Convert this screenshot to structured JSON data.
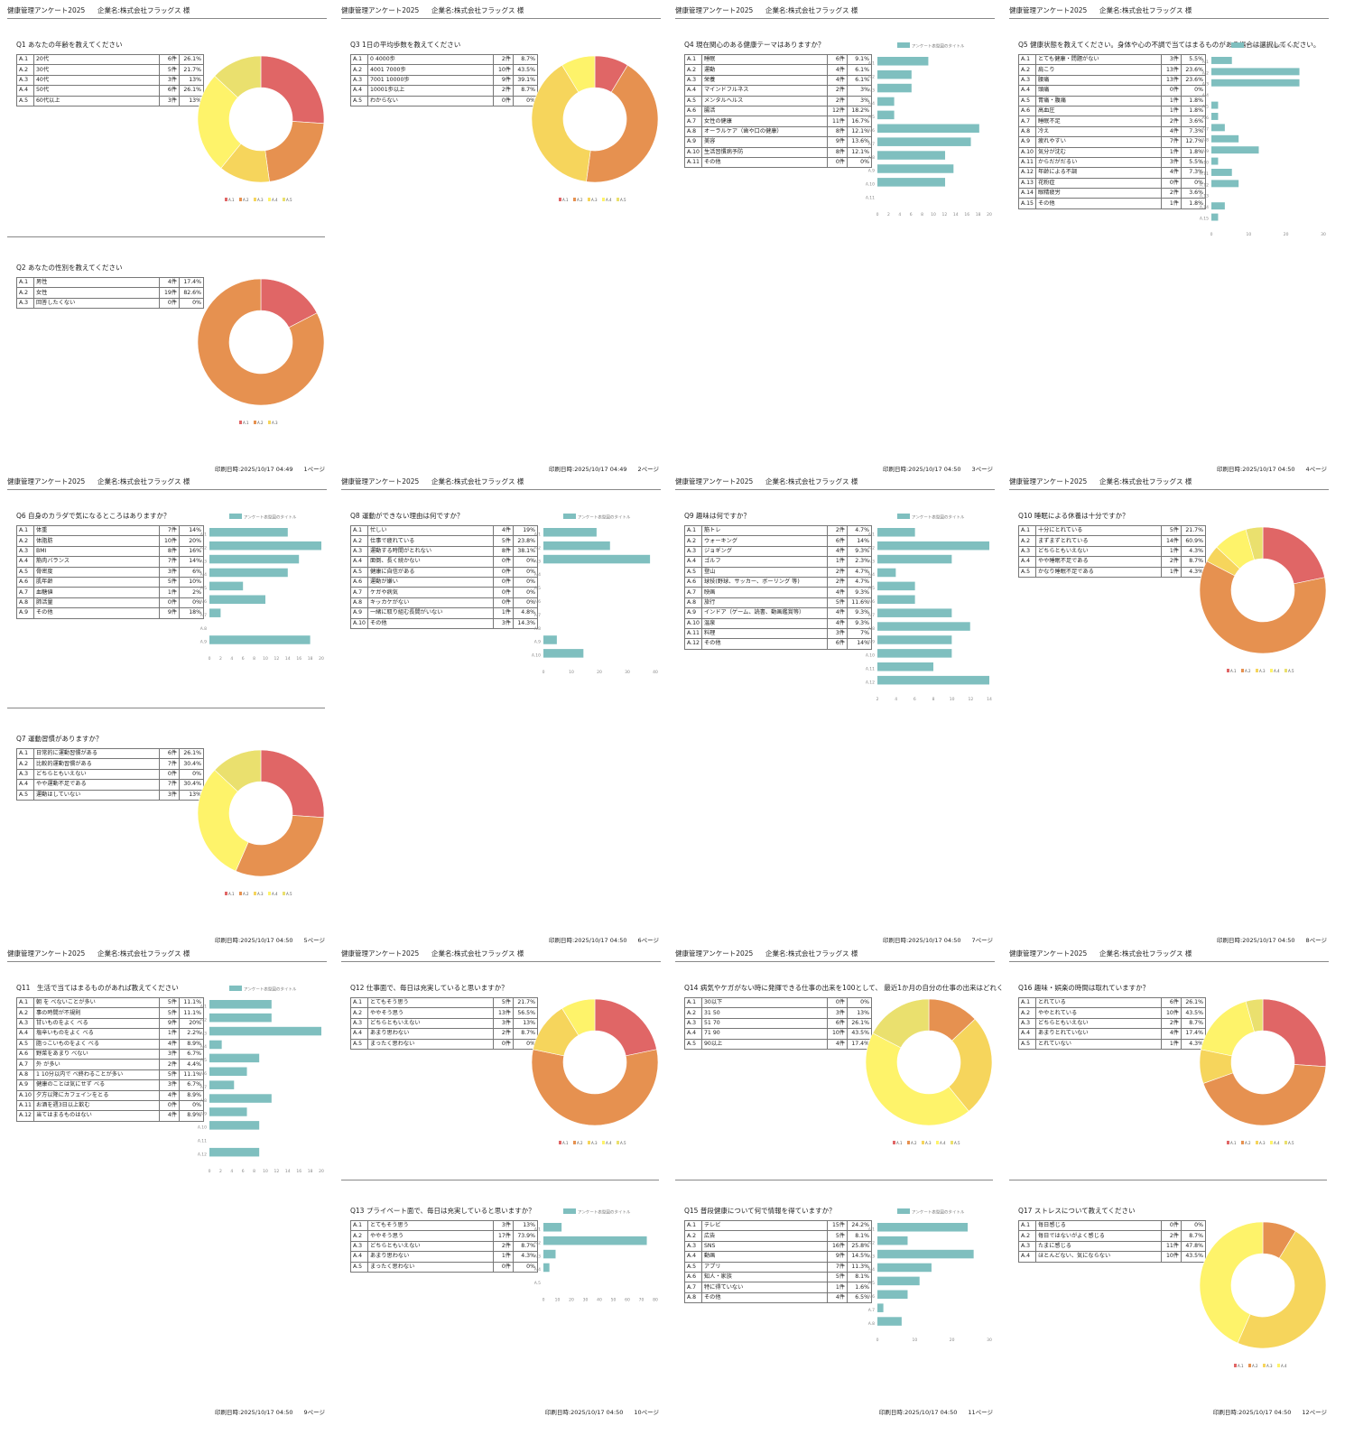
{
  "header": {
    "title": "健康管理アンケート2025",
    "company": "企業名:株式会社フラッグス 様"
  },
  "print_prefix": "印刷日時:",
  "bar_legend_label": "アンケート表型図のタイトル",
  "colors": {
    "donut": [
      "#e06666",
      "#e69150",
      "#f6d55c",
      "#fef36a",
      "#eae06e"
    ],
    "bar": "#7fbfbf"
  },
  "pages": [
    {
      "date": "2025/10/17 04:49",
      "page": "1ページ"
    },
    {
      "date": "2025/10/17 04:49",
      "page": "2ページ"
    },
    {
      "date": "2025/10/17 04:50",
      "page": "3ページ"
    },
    {
      "date": "2025/10/17 04:50",
      "page": "4ページ"
    },
    {
      "date": "2025/10/17 04:50",
      "page": "5ページ"
    },
    {
      "date": "2025/10/17 04:50",
      "page": "6ページ"
    },
    {
      "date": "2025/10/17 04:50",
      "page": "7ページ"
    },
    {
      "date": "2025/10/17 04:50",
      "page": "8ページ"
    },
    {
      "date": "2025/10/17 04:50",
      "page": "9ページ"
    },
    {
      "date": "2025/10/17 04:50",
      "page": "10ページ"
    },
    {
      "date": "2025/10/17 04:50",
      "page": "11ページ"
    },
    {
      "date": "2025/10/17 04:50",
      "page": "12ページ"
    }
  ],
  "questions": [
    {
      "page": 0,
      "slot": 0,
      "title": "Q1 あなたの年齢を教えてください",
      "chart": "donut",
      "answers": [
        [
          "A.1",
          "20代",
          "6件",
          "26.1%"
        ],
        [
          "A.2",
          "30代",
          "5件",
          "21.7%"
        ],
        [
          "A.3",
          "40代",
          "3件",
          "13%"
        ],
        [
          "A.4",
          "50代",
          "6件",
          "26.1%"
        ],
        [
          "A.5",
          "60代以上",
          "3件",
          "13%"
        ]
      ]
    },
    {
      "page": 0,
      "slot": 1,
      "title": "Q2 あなたの性別を教えてください",
      "chart": "donut",
      "answers": [
        [
          "A.1",
          "男性",
          "4件",
          "17.4%"
        ],
        [
          "A.2",
          "女性",
          "19件",
          "82.6%"
        ],
        [
          "A.3",
          "回答したくない",
          "0件",
          "0%"
        ]
      ]
    },
    {
      "page": 1,
      "slot": 0,
      "title": "Q3 1日の平均歩数を教えてください",
      "chart": "donut",
      "answers": [
        [
          "A.1",
          "0 4000歩",
          "2件",
          "8.7%"
        ],
        [
          "A.2",
          "4001 7000歩",
          "10件",
          "43.5%"
        ],
        [
          "A.3",
          "7001 10000歩",
          "9件",
          "39.1%"
        ],
        [
          "A.4",
          "10001歩以上",
          "2件",
          "8.7%"
        ],
        [
          "A.5",
          "わからない",
          "0件",
          "0%"
        ]
      ]
    },
    {
      "page": 2,
      "slot": 0,
      "title": "Q4 現在関心のある健康テーマはありますか？",
      "chart": "bar",
      "axis": [
        "0",
        "2",
        "4",
        "6",
        "8",
        "10",
        "12",
        "14",
        "16",
        "18",
        "20"
      ],
      "axis_max": 20,
      "answers": [
        [
          "A.1",
          "睡眠",
          "6件",
          "9.1%"
        ],
        [
          "A.2",
          "運動",
          "4件",
          "6.1%"
        ],
        [
          "A.3",
          "栄養",
          "4件",
          "6.1%"
        ],
        [
          "A.4",
          "マインドフルネス",
          "2件",
          "3%"
        ],
        [
          "A.5",
          "メンタルヘルス",
          "2件",
          "3%"
        ],
        [
          "A.6",
          "腸活",
          "12件",
          "18.2%"
        ],
        [
          "A.7",
          "女性の健康",
          "11件",
          "16.7%"
        ],
        [
          "A.8",
          "オーラルケア（歯や口の健康）",
          "8件",
          "12.1%"
        ],
        [
          "A.9",
          "美容",
          "9件",
          "13.6%"
        ],
        [
          "A.10",
          "生活習慣病予防",
          "8件",
          "12.1%"
        ],
        [
          "A.11",
          "その他",
          "0件",
          "0%"
        ]
      ]
    },
    {
      "page": 3,
      "slot": 0,
      "title": "Q5 健康状態を教えてください。身体や心の不調で当てはまるものがある場合は選択してください。",
      "chart": "bar",
      "axis": [
        "0",
        "10",
        "20",
        "30"
      ],
      "axis_max": 30,
      "answers": [
        [
          "A.1",
          "とても健康・問題がない",
          "3件",
          "5.5%"
        ],
        [
          "A.2",
          "肩こり",
          "13件",
          "23.6%"
        ],
        [
          "A.3",
          "腰痛",
          "13件",
          "23.6%"
        ],
        [
          "A.4",
          "頭痛",
          "0件",
          "0%"
        ],
        [
          "A.5",
          "胃痛・腹痛",
          "1件",
          "1.8%"
        ],
        [
          "A.6",
          "高血圧",
          "1件",
          "1.8%"
        ],
        [
          "A.7",
          "睡眠不足",
          "2件",
          "3.6%"
        ],
        [
          "A.8",
          "冷え",
          "4件",
          "7.3%"
        ],
        [
          "A.9",
          "疲れやすい",
          "7件",
          "12.7%"
        ],
        [
          "A.10",
          "気分が沈む",
          "1件",
          "1.8%"
        ],
        [
          "A.11",
          "からだがだるい",
          "3件",
          "5.5%"
        ],
        [
          "A.12",
          "年齢による不調",
          "4件",
          "7.3%"
        ],
        [
          "A.13",
          "花粉症",
          "0件",
          "0%"
        ],
        [
          "A.14",
          "眼精疲労",
          "2件",
          "3.6%"
        ],
        [
          "A.15",
          "その他",
          "1件",
          "1.8%"
        ]
      ]
    },
    {
      "page": 4,
      "slot": 0,
      "title": "Q6 自身のカラダで気になるところはありますか？",
      "chart": "bar",
      "axis": [
        "0",
        "2",
        "4",
        "6",
        "8",
        "10",
        "12",
        "14",
        "16",
        "18",
        "20"
      ],
      "axis_max": 20,
      "answers": [
        [
          "A.1",
          "体重",
          "7件",
          "14%"
        ],
        [
          "A.2",
          "体脂肪",
          "10件",
          "20%"
        ],
        [
          "A.3",
          "BMI",
          "8件",
          "16%"
        ],
        [
          "A.4",
          "筋肉バランス",
          "7件",
          "14%"
        ],
        [
          "A.5",
          "骨密度",
          "3件",
          "6%"
        ],
        [
          "A.6",
          "肌年齢",
          "5件",
          "10%"
        ],
        [
          "A.7",
          "血糖値",
          "1件",
          "2%"
        ],
        [
          "A.8",
          "肺活量",
          "0件",
          "0%"
        ],
        [
          "A.9",
          "その他",
          "9件",
          "18%"
        ]
      ]
    },
    {
      "page": 4,
      "slot": 1,
      "title": "Q7 運動習慣がありますか？",
      "chart": "donut",
      "answers": [
        [
          "A.1",
          "日常的に運動習慣がある",
          "6件",
          "26.1%"
        ],
        [
          "A.2",
          "比較的運動習慣がある",
          "7件",
          "30.4%"
        ],
        [
          "A.3",
          "どちらともいえない",
          "0件",
          "0%"
        ],
        [
          "A.4",
          "やや運動不足である",
          "7件",
          "30.4%"
        ],
        [
          "A.5",
          "運動はしていない",
          "3件",
          "13%"
        ]
      ]
    },
    {
      "page": 5,
      "slot": 0,
      "title": "Q8 運動ができない理由は何ですか？",
      "chart": "bar",
      "axis": [
        "0",
        "10",
        "20",
        "30",
        "40"
      ],
      "axis_max": 40,
      "answers": [
        [
          "A.1",
          "忙しい",
          "4件",
          "19%"
        ],
        [
          "A.2",
          "仕事で疲れている",
          "5件",
          "23.8%"
        ],
        [
          "A.3",
          "運動する時間がとれない",
          "8件",
          "38.1%"
        ],
        [
          "A.4",
          "面倒、長く続かない",
          "0件",
          "0%"
        ],
        [
          "A.5",
          "健康に自信がある",
          "0件",
          "0%"
        ],
        [
          "A.6",
          "運動が嫌い",
          "0件",
          "0%"
        ],
        [
          "A.7",
          "ケガや病気",
          "0件",
          "0%"
        ],
        [
          "A.8",
          "キッカケがない",
          "0件",
          "0%"
        ],
        [
          "A.9",
          "一緒に取り組む長間がいない",
          "1件",
          "4.8%"
        ],
        [
          "A.10",
          "その他",
          "3件",
          "14.3%"
        ]
      ]
    },
    {
      "page": 6,
      "slot": 0,
      "title": "Q9 趣味は何ですか？",
      "chart": "bar",
      "axis": [
        "2",
        "4",
        "6",
        "8",
        "10",
        "12",
        "14"
      ],
      "axis_min": 0,
      "axis_max": 14,
      "answers": [
        [
          "A.1",
          "筋トレ",
          "2件",
          "4.7%"
        ],
        [
          "A.2",
          "ウォーキング",
          "6件",
          "14%"
        ],
        [
          "A.3",
          "ジョギング",
          "4件",
          "9.3%"
        ],
        [
          "A.4",
          "ゴルフ",
          "1件",
          "2.3%"
        ],
        [
          "A.5",
          "登山",
          "2件",
          "4.7%"
        ],
        [
          "A.6",
          "球技(野球、サッカー、ボーリング 等)",
          "2件",
          "4.7%"
        ],
        [
          "A.7",
          "映画",
          "4件",
          "9.3%"
        ],
        [
          "A.8",
          "旅行",
          "5件",
          "11.6%"
        ],
        [
          "A.9",
          "インドア（ゲーム、読書、動画鑑賞等）",
          "4件",
          "9.3%"
        ],
        [
          "A.10",
          "温泉",
          "4件",
          "9.3%"
        ],
        [
          "A.11",
          "料理",
          "3件",
          "7%"
        ],
        [
          "A.12",
          "その他",
          "6件",
          "14%"
        ]
      ]
    },
    {
      "page": 7,
      "slot": 0,
      "title": "Q10 睡眠による休養は十分ですか？",
      "chart": "donut",
      "answers": [
        [
          "A.1",
          "十分にとれている",
          "5件",
          "21.7%"
        ],
        [
          "A.2",
          "まずまずとれている",
          "14件",
          "60.9%"
        ],
        [
          "A.3",
          "どちらともいえない",
          "1件",
          "4.3%"
        ],
        [
          "A.4",
          "やや睡眠不足である",
          "2件",
          "8.7%"
        ],
        [
          "A.5",
          "かなり睡眠不足である",
          "1件",
          "4.3%"
        ]
      ]
    },
    {
      "page": 8,
      "slot": 0,
      "title": "Q11　生活で当てはまるものがあれば教えてください",
      "chart": "bar",
      "axis": [
        "0",
        "2",
        "4",
        "6",
        "8",
        "10",
        "12",
        "14",
        "16",
        "18",
        "20"
      ],
      "axis_max": 20,
      "answers": [
        [
          "A.1",
          "朝 を べないことが多い",
          "5件",
          "11.1%"
        ],
        [
          "A.2",
          "事の時間が不規則",
          "5件",
          "11.1%"
        ],
        [
          "A.3",
          "甘いものをよく べる",
          "9件",
          "20%"
        ],
        [
          "A.4",
          "塩辛いものをよく べる",
          "1件",
          "2.2%"
        ],
        [
          "A.5",
          "脂っこいものをよく べる",
          "4件",
          "8.9%"
        ],
        [
          "A.6",
          "野菜をあまり べない",
          "3件",
          "6.7%"
        ],
        [
          "A.7",
          "外 が多い",
          "2件",
          "4.4%"
        ],
        [
          "A.8",
          "1 10分以内で べ終わることが多い",
          "5件",
          "11.1%"
        ],
        [
          "A.9",
          "健康のことは気にせず べる",
          "3件",
          "6.7%"
        ],
        [
          "A.10",
          "夕方以降にカフェインをとる",
          "4件",
          "8.9%"
        ],
        [
          "A.11",
          "お酒を週3日以上飲む",
          "0件",
          "0%"
        ],
        [
          "A.12",
          "当てはまるものはない",
          "4件",
          "8.9%"
        ]
      ]
    },
    {
      "page": 9,
      "slot": 0,
      "title": "Q12 仕事面で、毎日は充実していると思いますか？",
      "chart": "donut",
      "answers": [
        [
          "A.1",
          "とてもそう思う",
          "5件",
          "21.7%"
        ],
        [
          "A.2",
          "ややそう思う",
          "13件",
          "56.5%"
        ],
        [
          "A.3",
          "どちらともいえない",
          "3件",
          "13%"
        ],
        [
          "A.4",
          "あまり思わない",
          "2件",
          "8.7%"
        ],
        [
          "A.5",
          "まったく思わない",
          "0件",
          "0%"
        ]
      ]
    },
    {
      "page": 9,
      "slot": 1,
      "title": "Q13 プライベート面で、毎日は充実していると思いますか？",
      "chart": "bar",
      "axis": [
        "0",
        "10",
        "20",
        "30",
        "40",
        "50",
        "60",
        "70",
        "80"
      ],
      "axis_max": 80,
      "answers": [
        [
          "A.1",
          "とてもそう思う",
          "3件",
          "13%"
        ],
        [
          "A.2",
          "ややそう思う",
          "17件",
          "73.9%"
        ],
        [
          "A.3",
          "どちらともいえない",
          "2件",
          "8.7%"
        ],
        [
          "A.4",
          "あまり思わない",
          "1件",
          "4.3%"
        ],
        [
          "A.5",
          "まったく思わない",
          "0件",
          "0%"
        ]
      ]
    },
    {
      "page": 10,
      "slot": 0,
      "title": "Q14 病気やケガがない時に発揮できる仕事の出来を100として、 最近1か月の自分の仕事の出来はどれくらいですか？",
      "chart": "donut",
      "answers": [
        [
          "A.1",
          "30以下",
          "0件",
          "0%"
        ],
        [
          "A.2",
          "31 50",
          "3件",
          "13%"
        ],
        [
          "A.3",
          "51 70",
          "6件",
          "26.1%"
        ],
        [
          "A.4",
          "71 90",
          "10件",
          "43.5%"
        ],
        [
          "A.5",
          "90以上",
          "4件",
          "17.4%"
        ]
      ]
    },
    {
      "page": 10,
      "slot": 1,
      "title": "Q15 普段健康について何で情報を得ていますか？",
      "chart": "bar",
      "axis": [
        "0",
        "10",
        "20",
        "30"
      ],
      "axis_max": 30,
      "answers": [
        [
          "A.1",
          "テレビ",
          "15件",
          "24.2%"
        ],
        [
          "A.2",
          "広告",
          "5件",
          "8.1%"
        ],
        [
          "A.3",
          "SNS",
          "16件",
          "25.8%"
        ],
        [
          "A.4",
          "動画",
          "9件",
          "14.5%"
        ],
        [
          "A.5",
          "アプリ",
          "7件",
          "11.3%"
        ],
        [
          "A.6",
          "知人・家族",
          "5件",
          "8.1%"
        ],
        [
          "A.7",
          "特に得ていない",
          "1件",
          "1.6%"
        ],
        [
          "A.8",
          "その他",
          "4件",
          "6.5%"
        ]
      ]
    },
    {
      "page": 11,
      "slot": 0,
      "title": "Q16 趣味・娯楽の時間は取れていますか？",
      "chart": "donut",
      "answers": [
        [
          "A.1",
          "とれている",
          "6件",
          "26.1%"
        ],
        [
          "A.2",
          "ややとれている",
          "10件",
          "43.5%"
        ],
        [
          "A.3",
          "どちらともいえない",
          "2件",
          "8.7%"
        ],
        [
          "A.4",
          "あまりとれていない",
          "4件",
          "17.4%"
        ],
        [
          "A.5",
          "とれていない",
          "1件",
          "4.3%"
        ]
      ]
    },
    {
      "page": 11,
      "slot": 1,
      "title": "Q17 ストレスについて教えてください",
      "chart": "donut",
      "answers": [
        [
          "A.1",
          "毎日感じる",
          "0件",
          "0%"
        ],
        [
          "A.2",
          "毎日ではないがよく感じる",
          "2件",
          "8.7%"
        ],
        [
          "A.3",
          "たまに感じる",
          "11件",
          "47.8%"
        ],
        [
          "A.4",
          "ほとんどない、気にならない",
          "10件",
          "43.5%"
        ]
      ]
    }
  ]
}
